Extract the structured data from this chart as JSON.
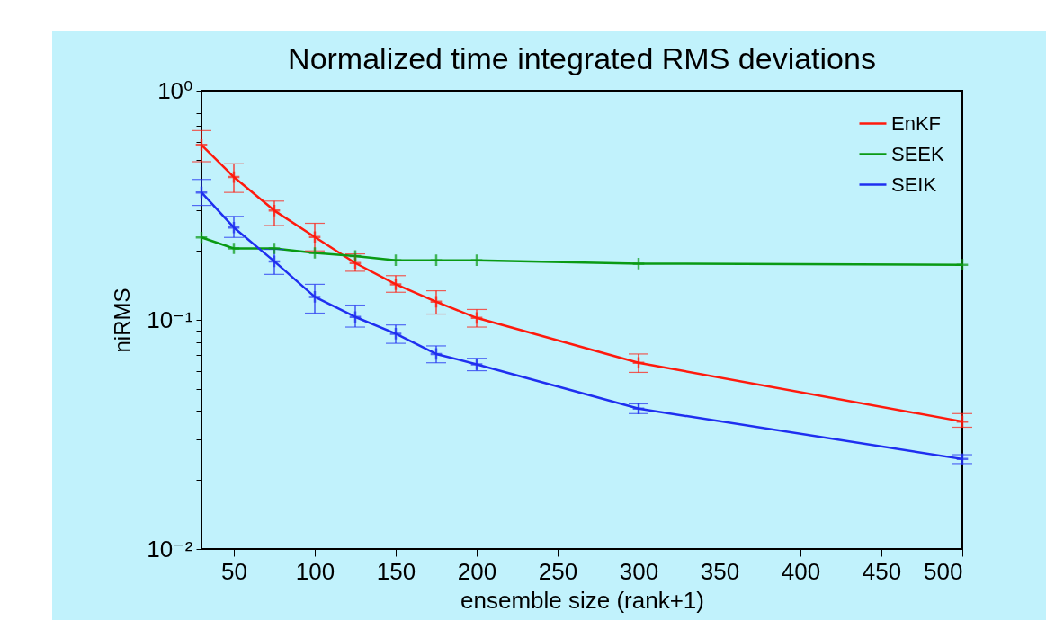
{
  "chart_data": {
    "type": "line",
    "title": "Normalized time integrated RMS deviations",
    "xlabel": "ensemble size (rank+1)",
    "ylabel": "niRMS",
    "x": [
      30,
      50,
      75,
      100,
      125,
      150,
      175,
      200,
      300,
      500
    ],
    "series": [
      {
        "name": "EnKF",
        "color": "#ff1a0d",
        "values": [
          0.58,
          0.42,
          0.3,
          0.23,
          0.177,
          0.143,
          0.12,
          0.102,
          0.065,
          0.036
        ],
        "errors": [
          [
            0.49,
            0.67
          ],
          [
            0.36,
            0.48
          ],
          [
            0.258,
            0.33
          ],
          [
            0.2,
            0.264
          ],
          [
            0.163,
            0.194
          ],
          [
            0.132,
            0.156
          ],
          [
            0.106,
            0.134
          ],
          [
            0.093,
            0.111
          ],
          [
            0.059,
            0.071
          ],
          [
            0.034,
            0.039
          ]
        ]
      },
      {
        "name": "SEEK",
        "color": "#0a9a14",
        "values": [
          0.229,
          0.205,
          0.205,
          0.196,
          0.19,
          0.182,
          0.182,
          0.182,
          0.176,
          0.174
        ]
      },
      {
        "name": "SEIK",
        "color": "#1f2ff0",
        "values": [
          0.36,
          0.253,
          0.18,
          0.126,
          0.103,
          0.087,
          0.071,
          0.064,
          0.041,
          0.0247
        ],
        "errors": [
          [
            0.316,
            0.41
          ],
          [
            0.229,
            0.283
          ],
          [
            0.158,
            0.203
          ],
          [
            0.107,
            0.143
          ],
          [
            0.093,
            0.116
          ],
          [
            0.079,
            0.095
          ],
          [
            0.065,
            0.077
          ],
          [
            0.06,
            0.068
          ],
          [
            0.039,
            0.043
          ],
          [
            0.0236,
            0.0258
          ]
        ]
      }
    ],
    "log": true,
    "xlim": [
      30,
      500
    ],
    "xticks": [
      50,
      100,
      150,
      200,
      250,
      300,
      350,
      400,
      450,
      500
    ],
    "ylim": [
      0.01,
      1
    ],
    "yticks": [
      {
        "value": 0.01,
        "label": "10⁻²"
      },
      {
        "value": 0.02,
        "label": null
      },
      {
        "value": 0.03,
        "label": null
      },
      {
        "value": 0.04,
        "label": null
      },
      {
        "value": 0.05,
        "label": null
      },
      {
        "value": 0.06,
        "label": null
      },
      {
        "value": 0.07,
        "label": null
      },
      {
        "value": 0.08,
        "label": null
      },
      {
        "value": 0.09,
        "label": null
      },
      {
        "value": 0.1,
        "label": "10⁻¹"
      },
      {
        "value": 0.2,
        "label": null
      },
      {
        "value": 0.3,
        "label": null
      },
      {
        "value": 0.4,
        "label": null
      },
      {
        "value": 0.5,
        "label": null
      },
      {
        "value": 0.6,
        "label": null
      },
      {
        "value": 0.7,
        "label": null
      },
      {
        "value": 0.8,
        "label": null
      },
      {
        "value": 0.9,
        "label": null
      },
      {
        "value": 1,
        "label": "10⁰"
      }
    ],
    "legend": "top right",
    "marker": "cross",
    "line_style": "solid"
  }
}
